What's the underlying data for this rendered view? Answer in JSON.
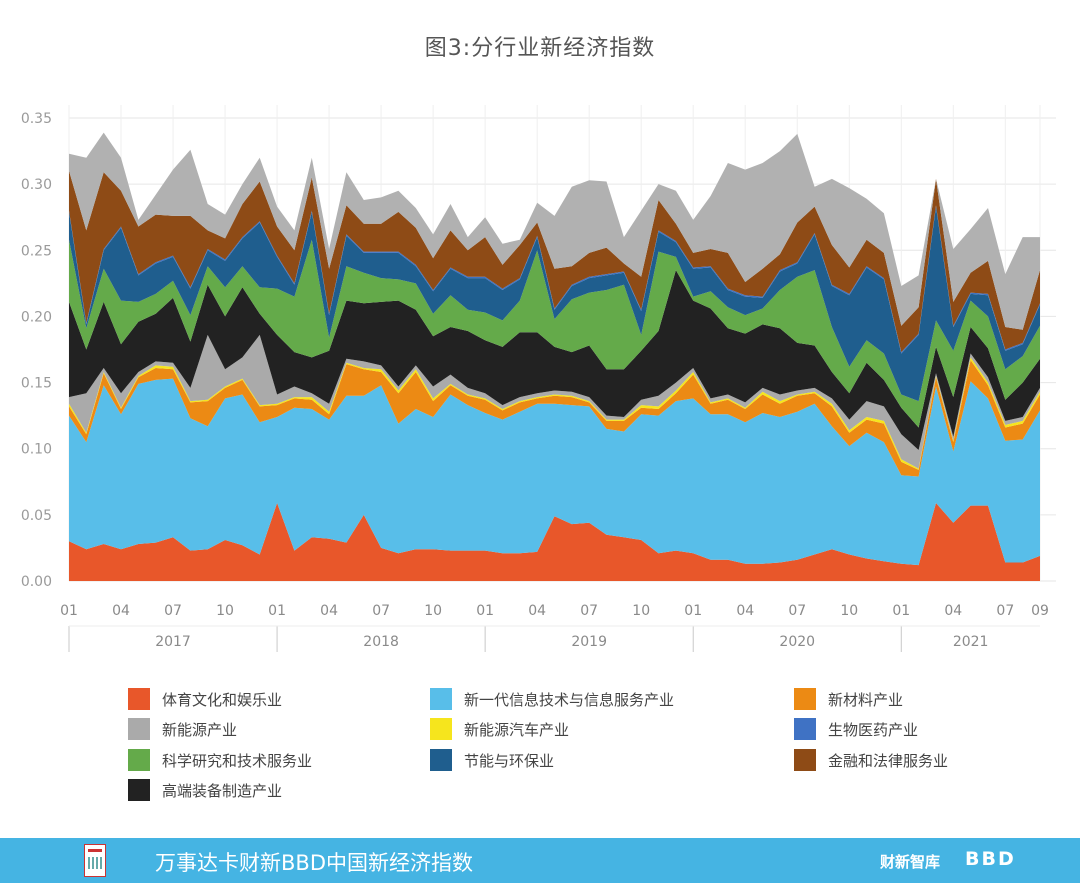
{
  "chart_data": {
    "type": "area",
    "stacked": true,
    "title": "图3:分行业新经济指数",
    "ylim": [
      0,
      0.35
    ],
    "yticks": [
      "0.00",
      "0.05",
      "0.10",
      "0.15",
      "0.20",
      "0.25",
      "0.30",
      "0.35"
    ],
    "x": [
      "2017-01",
      "2017-02",
      "2017-03",
      "2017-04",
      "2017-05",
      "2017-06",
      "2017-07",
      "2017-08",
      "2017-09",
      "2017-10",
      "2017-11",
      "2017-12",
      "2018-01",
      "2018-02",
      "2018-03",
      "2018-04",
      "2018-05",
      "2018-06",
      "2018-07",
      "2018-08",
      "2018-09",
      "2018-10",
      "2018-11",
      "2018-12",
      "2019-01",
      "2019-02",
      "2019-03",
      "2019-04",
      "2019-05",
      "2019-06",
      "2019-07",
      "2019-08",
      "2019-09",
      "2019-10",
      "2019-11",
      "2019-12",
      "2020-01",
      "2020-02",
      "2020-03",
      "2020-04",
      "2020-05",
      "2020-06",
      "2020-07",
      "2020-08",
      "2020-09",
      "2020-10",
      "2020-11",
      "2020-12",
      "2021-01",
      "2021-02",
      "2021-03",
      "2021-04",
      "2021-05",
      "2021-06",
      "2021-07",
      "2021-08",
      "2021-09"
    ],
    "month_ticks": [
      "01",
      "04",
      "07",
      "10",
      "01",
      "04",
      "07",
      "10",
      "01",
      "04",
      "07",
      "10",
      "01",
      "04",
      "07",
      "10",
      "01",
      "04",
      "07",
      "09"
    ],
    "year_labels": [
      "2017",
      "2018",
      "2019",
      "2020",
      "2021"
    ],
    "grid": true,
    "legend_position": "bottom",
    "series": [
      {
        "name": "体育文化和娱乐业",
        "color": "#e8572a",
        "values": [
          0.03,
          0.024,
          0.028,
          0.024,
          0.028,
          0.029,
          0.033,
          0.023,
          0.024,
          0.031,
          0.027,
          0.02,
          0.059,
          0.023,
          0.033,
          0.032,
          0.029,
          0.05,
          0.025,
          0.021,
          0.024,
          0.024,
          0.023,
          0.023,
          0.023,
          0.021,
          0.021,
          0.022,
          0.049,
          0.043,
          0.044,
          0.035,
          0.033,
          0.031,
          0.021,
          0.023,
          0.021,
          0.016,
          0.016,
          0.013,
          0.013,
          0.014,
          0.016,
          0.02,
          0.024,
          0.02,
          0.017,
          0.015,
          0.013,
          0.012,
          0.059,
          0.044,
          0.057,
          0.057,
          0.014,
          0.014,
          0.019
        ]
      },
      {
        "name": "新一代信息技术与信息服务产业",
        "color": "#58bee9",
        "values": [
          0.095,
          0.081,
          0.12,
          0.102,
          0.121,
          0.123,
          0.12,
          0.1,
          0.093,
          0.107,
          0.114,
          0.1,
          0.065,
          0.108,
          0.097,
          0.09,
          0.111,
          0.09,
          0.123,
          0.098,
          0.106,
          0.1,
          0.118,
          0.11,
          0.104,
          0.101,
          0.107,
          0.112,
          0.085,
          0.09,
          0.088,
          0.08,
          0.08,
          0.095,
          0.104,
          0.113,
          0.117,
          0.11,
          0.11,
          0.107,
          0.114,
          0.11,
          0.112,
          0.114,
          0.093,
          0.082,
          0.095,
          0.09,
          0.067,
          0.067,
          0.088,
          0.054,
          0.094,
          0.081,
          0.092,
          0.093,
          0.11
        ]
      },
      {
        "name": "新材料产业",
        "color": "#ec8a14",
        "values": [
          0.007,
          0.006,
          0.009,
          0.004,
          0.005,
          0.009,
          0.007,
          0.012,
          0.019,
          0.008,
          0.011,
          0.012,
          0.009,
          0.007,
          0.007,
          0.004,
          0.024,
          0.02,
          0.01,
          0.023,
          0.028,
          0.012,
          0.007,
          0.007,
          0.01,
          0.007,
          0.007,
          0.004,
          0.006,
          0.006,
          0.003,
          0.006,
          0.008,
          0.005,
          0.005,
          0.006,
          0.018,
          0.008,
          0.011,
          0.01,
          0.014,
          0.01,
          0.012,
          0.008,
          0.015,
          0.01,
          0.01,
          0.014,
          0.01,
          0.005,
          0.007,
          0.007,
          0.016,
          0.01,
          0.01,
          0.012,
          0.012
        ]
      },
      {
        "name": "新能源汽车产业",
        "color": "#f6e51d",
        "values": [
          0.002,
          0.001,
          0.001,
          0.001,
          0.001,
          0.002,
          0.002,
          0.001,
          0.001,
          0.001,
          0.001,
          0.001,
          0.001,
          0.001,
          0.002,
          0.002,
          0.001,
          0.001,
          0.002,
          0.002,
          0.002,
          0.002,
          0.001,
          0.001,
          0.001,
          0.001,
          0.001,
          0.001,
          0.001,
          0.001,
          0.001,
          0.001,
          0.001,
          0.002,
          0.002,
          0.002,
          0.002,
          0.001,
          0.001,
          0.001,
          0.002,
          0.002,
          0.001,
          0.001,
          0.002,
          0.002,
          0.002,
          0.002,
          0.002,
          0.001,
          0.001,
          0.001,
          0.002,
          0.002,
          0.002,
          0.002,
          0.002
        ]
      },
      {
        "name": "新能源产业",
        "color": "#aaaaaa",
        "values": [
          0.005,
          0.03,
          0.003,
          0.011,
          0.003,
          0.003,
          0.003,
          0.01,
          0.049,
          0.013,
          0.016,
          0.053,
          0.007,
          0.008,
          0.003,
          0.006,
          0.003,
          0.005,
          0.003,
          0.003,
          0.003,
          0.009,
          0.007,
          0.005,
          0.004,
          0.003,
          0.003,
          0.003,
          0.003,
          0.003,
          0.003,
          0.003,
          0.002,
          0.004,
          0.008,
          0.006,
          0.003,
          0.003,
          0.003,
          0.004,
          0.003,
          0.005,
          0.003,
          0.003,
          0.004,
          0.008,
          0.012,
          0.011,
          0.019,
          0.014,
          0.002,
          0.003,
          0.003,
          0.004,
          0.003,
          0.003,
          0.003
        ]
      },
      {
        "name": "高端装备制造产业",
        "color": "#222222",
        "values": [
          0.072,
          0.033,
          0.05,
          0.037,
          0.038,
          0.036,
          0.049,
          0.035,
          0.038,
          0.04,
          0.053,
          0.016,
          0.045,
          0.026,
          0.027,
          0.04,
          0.044,
          0.044,
          0.048,
          0.065,
          0.042,
          0.038,
          0.036,
          0.043,
          0.04,
          0.044,
          0.049,
          0.046,
          0.033,
          0.03,
          0.039,
          0.035,
          0.036,
          0.037,
          0.049,
          0.085,
          0.051,
          0.068,
          0.05,
          0.052,
          0.048,
          0.05,
          0.036,
          0.032,
          0.02,
          0.02,
          0.029,
          0.02,
          0.02,
          0.017,
          0.02,
          0.03,
          0.02,
          0.022,
          0.016,
          0.026,
          0.022
        ]
      },
      {
        "name": "科学研究和技术服务业",
        "color": "#64aa4a",
        "values": [
          0.047,
          0.016,
          0.025,
          0.033,
          0.015,
          0.015,
          0.013,
          0.02,
          0.014,
          0.022,
          0.016,
          0.02,
          0.035,
          0.042,
          0.089,
          0.01,
          0.026,
          0.023,
          0.018,
          0.016,
          0.02,
          0.017,
          0.024,
          0.016,
          0.021,
          0.02,
          0.024,
          0.062,
          0.021,
          0.04,
          0.04,
          0.06,
          0.064,
          0.012,
          0.06,
          0.01,
          0.003,
          0.013,
          0.016,
          0.014,
          0.012,
          0.029,
          0.05,
          0.057,
          0.034,
          0.02,
          0.017,
          0.02,
          0.01,
          0.02,
          0.02,
          0.035,
          0.02,
          0.024,
          0.023,
          0.02,
          0.025
        ]
      },
      {
        "name": "节能与环保业",
        "color": "#1f5e8e",
        "values": [
          0.021,
          0.003,
          0.014,
          0.055,
          0.02,
          0.023,
          0.018,
          0.02,
          0.012,
          0.02,
          0.021,
          0.049,
          0.024,
          0.009,
          0.021,
          0.017,
          0.023,
          0.015,
          0.019,
          0.02,
          0.013,
          0.017,
          0.02,
          0.024,
          0.026,
          0.023,
          0.016,
          0.01,
          0.007,
          0.01,
          0.011,
          0.011,
          0.009,
          0.018,
          0.015,
          0.011,
          0.021,
          0.018,
          0.013,
          0.014,
          0.008,
          0.014,
          0.01,
          0.027,
          0.031,
          0.054,
          0.055,
          0.056,
          0.031,
          0.05,
          0.086,
          0.018,
          0.005,
          0.016,
          0.014,
          0.009,
          0.016
        ]
      },
      {
        "name": "生物医药产业",
        "color": "#3f72c4",
        "values": [
          0.001,
          0.001,
          0.001,
          0.001,
          0.001,
          0.001,
          0.001,
          0.001,
          0.001,
          0.001,
          0.001,
          0.001,
          0.001,
          0.001,
          0.001,
          0.001,
          0.001,
          0.001,
          0.001,
          0.001,
          0.001,
          0.001,
          0.001,
          0.001,
          0.001,
          0.001,
          0.001,
          0.001,
          0.001,
          0.001,
          0.001,
          0.001,
          0.001,
          0.001,
          0.001,
          0.001,
          0.001,
          0.001,
          0.001,
          0.001,
          0.001,
          0.001,
          0.001,
          0.001,
          0.001,
          0.001,
          0.001,
          0.001,
          0.001,
          0.001,
          0.001,
          0.001,
          0.001,
          0.001,
          0.001,
          0.001,
          0.001
        ]
      },
      {
        "name": "金融和法律服务业",
        "color": "#8e4b16",
        "values": [
          0.03,
          0.07,
          0.058,
          0.027,
          0.036,
          0.036,
          0.03,
          0.054,
          0.014,
          0.016,
          0.025,
          0.03,
          0.022,
          0.025,
          0.025,
          0.034,
          0.022,
          0.021,
          0.021,
          0.03,
          0.028,
          0.024,
          0.028,
          0.02,
          0.03,
          0.018,
          0.025,
          0.01,
          0.03,
          0.014,
          0.018,
          0.02,
          0.006,
          0.025,
          0.023,
          0.013,
          0.011,
          0.013,
          0.027,
          0.01,
          0.021,
          0.012,
          0.03,
          0.02,
          0.03,
          0.02,
          0.02,
          0.019,
          0.02,
          0.02,
          0.02,
          0.018,
          0.015,
          0.025,
          0.017,
          0.01,
          0.025
        ]
      },
      {
        "name": "",
        "color": "#b1b1b1",
        "values": [
          0.013,
          0.055,
          0.03,
          0.025,
          0.005,
          0.015,
          0.035,
          0.05,
          0.02,
          0.018,
          0.015,
          0.018,
          0.015,
          0.015,
          0.015,
          0.015,
          0.025,
          0.018,
          0.02,
          0.016,
          0.015,
          0.018,
          0.02,
          0.01,
          0.015,
          0.016,
          0.004,
          0.015,
          0.04,
          0.06,
          0.055,
          0.05,
          0.02,
          0.05,
          0.012,
          0.025,
          0.025,
          0.04,
          0.068,
          0.085,
          0.08,
          0.078,
          0.067,
          0.015,
          0.05,
          0.06,
          0.031,
          0.03,
          0.03,
          0.024,
          0.0,
          0.04,
          0.033,
          0.04,
          0.04,
          0.07,
          0.025
        ]
      }
    ]
  },
  "legend": [
    {
      "label": "体育文化和娱乐业",
      "color": "#e8572a"
    },
    {
      "label": "新一代信息技术与信息服务产业",
      "color": "#58bee9"
    },
    {
      "label": "新材料产业",
      "color": "#ec8a14"
    },
    {
      "label": "新能源产业",
      "color": "#aaaaaa"
    },
    {
      "label": "新能源汽车产业",
      "color": "#f6e51d"
    },
    {
      "label": "生物医药产业",
      "color": "#3f72c4"
    },
    {
      "label": "科学研究和技术服务业",
      "color": "#64aa4a"
    },
    {
      "label": "节能与环保业",
      "color": "#1f5e8e"
    },
    {
      "label": "金融和法律服务业",
      "color": "#8e4b16"
    },
    {
      "label": "高端装备制造产业",
      "color": "#222222"
    }
  ],
  "footer": {
    "text": "万事达卡财新BBD中国新经济指数",
    "brand1": "财新智库",
    "brand2": "BBD",
    "bg_color": "#45b4e3"
  }
}
